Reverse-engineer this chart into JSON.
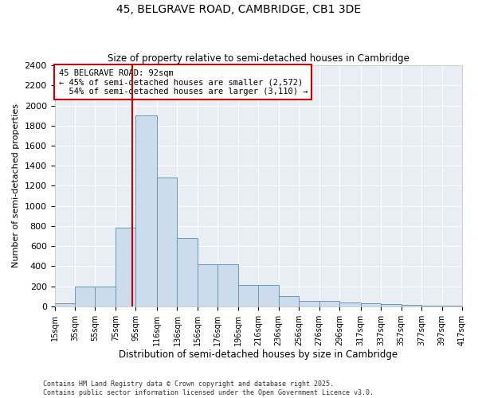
{
  "title_line1": "45, BELGRAVE ROAD, CAMBRIDGE, CB1 3DE",
  "title_line2": "Size of property relative to semi-detached houses in Cambridge",
  "xlabel": "Distribution of semi-detached houses by size in Cambridge",
  "ylabel": "Number of semi-detached properties",
  "property_size": 92,
  "property_label": "45 BELGRAVE ROAD: 92sqm",
  "pct_smaller": 45,
  "count_smaller": 2572,
  "pct_larger": 54,
  "count_larger": 3110,
  "bar_left_edges": [
    15,
    35,
    55,
    75,
    95,
    116,
    136,
    156,
    176,
    196,
    216,
    236,
    256,
    276,
    296,
    317,
    337,
    357,
    377,
    397
  ],
  "bar_widths": [
    20,
    20,
    20,
    20,
    21,
    20,
    20,
    20,
    20,
    20,
    20,
    20,
    20,
    20,
    21,
    20,
    20,
    20,
    20,
    20
  ],
  "bar_heights": [
    30,
    200,
    200,
    780,
    1900,
    1280,
    680,
    420,
    420,
    215,
    215,
    100,
    55,
    55,
    40,
    30,
    25,
    15,
    10,
    5
  ],
  "tick_labels": [
    "15sqm",
    "35sqm",
    "55sqm",
    "75sqm",
    "95sqm",
    "116sqm",
    "136sqm",
    "156sqm",
    "176sqm",
    "196sqm",
    "216sqm",
    "236sqm",
    "256sqm",
    "276sqm",
    "296sqm",
    "317sqm",
    "337sqm",
    "357sqm",
    "377sqm",
    "397sqm",
    "417sqm"
  ],
  "bar_color": "#ccdcec",
  "bar_edge_color": "#6699bb",
  "line_color": "#cc0000",
  "bg_color": "#e8eef4",
  "grid_color": "#ffffff",
  "annotation_box_color": "#cc0000",
  "ylim": [
    0,
    2400
  ],
  "yticks": [
    0,
    200,
    400,
    600,
    800,
    1000,
    1200,
    1400,
    1600,
    1800,
    2000,
    2200,
    2400
  ],
  "footer_line1": "Contains HM Land Registry data © Crown copyright and database right 2025.",
  "footer_line2": "Contains public sector information licensed under the Open Government Licence v3.0."
}
